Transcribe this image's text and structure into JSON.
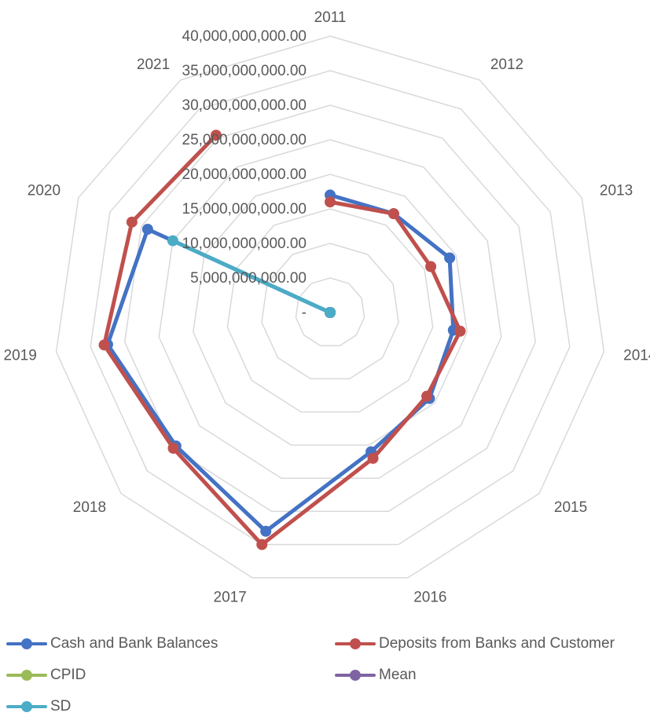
{
  "chart_data": {
    "type": "radar",
    "categories": [
      "2011",
      "2012",
      "2013",
      "2014",
      "2015",
      "2016",
      "2017",
      "2018",
      "2019",
      "2020",
      "2021"
    ],
    "radial_axis": {
      "range": [
        0,
        40000000000
      ],
      "ticks": [
        0,
        5000000000,
        10000000000,
        15000000000,
        20000000000,
        25000000000,
        30000000000,
        35000000000,
        40000000000
      ],
      "tick_labels": [
        "-",
        "5,000,000,000.00",
        "10,000,000,000.00",
        "15,000,000,000.00",
        "20,000,000,000.00",
        "25,000,000,000.00",
        "30,000,000,000.00",
        "35,000,000,000.00",
        "40,000,000,000.00"
      ]
    },
    "grid": true,
    "legend_position": "bottom",
    "series": [
      {
        "name": "Cash and Bank Balances",
        "color": "#4472c4",
        "values": [
          17000000000,
          17000000000,
          19000000000,
          18000000000,
          19000000000,
          21000000000,
          33000000000,
          29500000000,
          32500000000,
          29000000000,
          0
        ]
      },
      {
        "name": "Deposits from Banks and Customer",
        "color": "#c0504d",
        "values": [
          16000000000,
          17000000000,
          16000000000,
          19000000000,
          18500000000,
          22000000000,
          35000000000,
          30000000000,
          33000000000,
          31500000000,
          30500000000
        ]
      },
      {
        "name": "CPID",
        "color": "#9bbb59",
        "values": [
          0,
          0,
          0,
          0,
          0,
          0,
          0,
          0,
          0,
          0,
          0
        ]
      },
      {
        "name": "Mean",
        "color": "#8064a2",
        "values": [
          0,
          0,
          0,
          0,
          0,
          0,
          0,
          0,
          0,
          0,
          0
        ]
      },
      {
        "name": "SD",
        "color": "#4bacc6",
        "values": [
          0,
          0,
          0,
          0,
          0,
          0,
          0,
          0,
          0,
          0,
          0
        ],
        "extra_point": {
          "category": "2020",
          "value": 25000000000
        }
      }
    ]
  }
}
